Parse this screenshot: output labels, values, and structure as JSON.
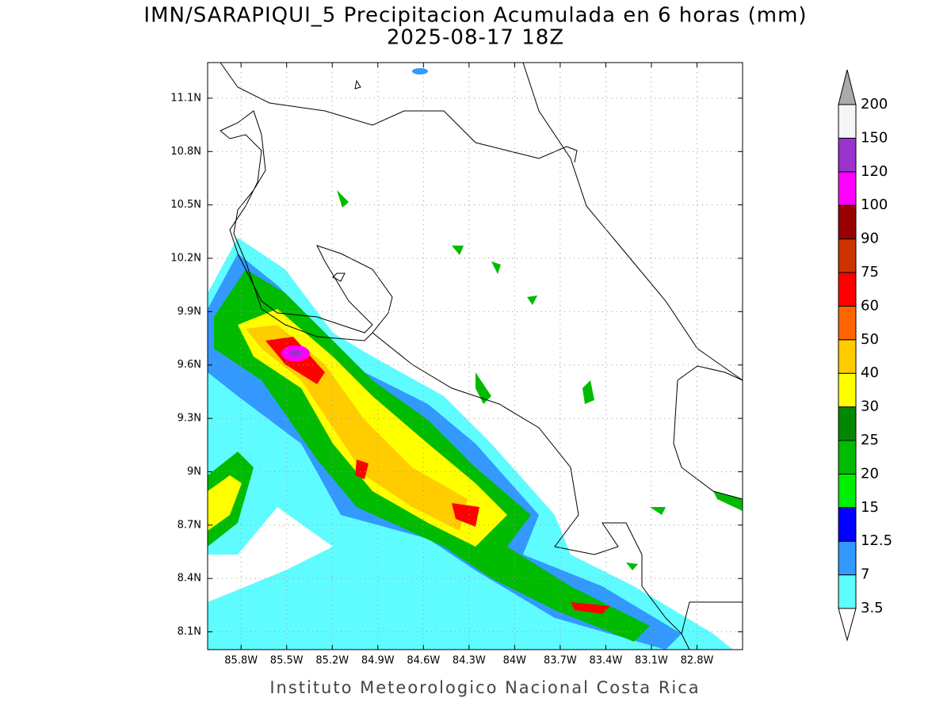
{
  "title": "IMN/SARAPIQUI_5 Precipitacion Acumulada en 6 horas (mm)",
  "subtitle": "2025-08-17 18Z",
  "footer": "Instituto Meteorologico Nacional Costa Rica",
  "map": {
    "xlim": [
      -86.02,
      -82.5
    ],
    "ylim": [
      8.0,
      11.3
    ],
    "xticks": [
      {
        "value": -85.8,
        "label": "85.8W"
      },
      {
        "value": -85.5,
        "label": "85.5W"
      },
      {
        "value": -85.2,
        "label": "85.2W"
      },
      {
        "value": -84.9,
        "label": "84.9W"
      },
      {
        "value": -84.6,
        "label": "84.6W"
      },
      {
        "value": -84.3,
        "label": "84.3W"
      },
      {
        "value": -84,
        "label": "84W"
      },
      {
        "value": -83.7,
        "label": "83.7W"
      },
      {
        "value": -83.4,
        "label": "83.4W"
      },
      {
        "value": -83.1,
        "label": "83.1W"
      },
      {
        "value": -82.8,
        "label": "82.8W"
      }
    ],
    "yticks": [
      {
        "value": 8.1,
        "label": "8.1N"
      },
      {
        "value": 8.4,
        "label": "8.4N"
      },
      {
        "value": 8.7,
        "label": "8.7N"
      },
      {
        "value": 9,
        "label": "9N"
      },
      {
        "value": 9.3,
        "label": "9.3N"
      },
      {
        "value": 9.6,
        "label": "9.6N"
      },
      {
        "value": 9.9,
        "label": "9.9N"
      },
      {
        "value": 10.2,
        "label": "10.2N"
      },
      {
        "value": 10.5,
        "label": "10.5N"
      },
      {
        "value": 10.8,
        "label": "10.8N"
      },
      {
        "value": 11.1,
        "label": "11.1N"
      }
    ],
    "grid": true
  },
  "colorbar": {
    "labels": [
      3.5,
      7,
      12.5,
      15,
      20,
      25,
      30,
      40,
      50,
      60,
      75,
      90,
      100,
      120,
      150,
      200
    ],
    "colors": [
      "#5ffcff",
      "#3399ff",
      "#0000ff",
      "#00ee00",
      "#00bb00",
      "#008800",
      "#ffff00",
      "#ffcc00",
      "#ff6600",
      "#ff0000",
      "#cc3300",
      "#990000",
      "#ff00ff",
      "#9933cc",
      "#f5f5f5"
    ],
    "extend_colors": [
      "#ffffff",
      "#aaaaaa"
    ]
  }
}
